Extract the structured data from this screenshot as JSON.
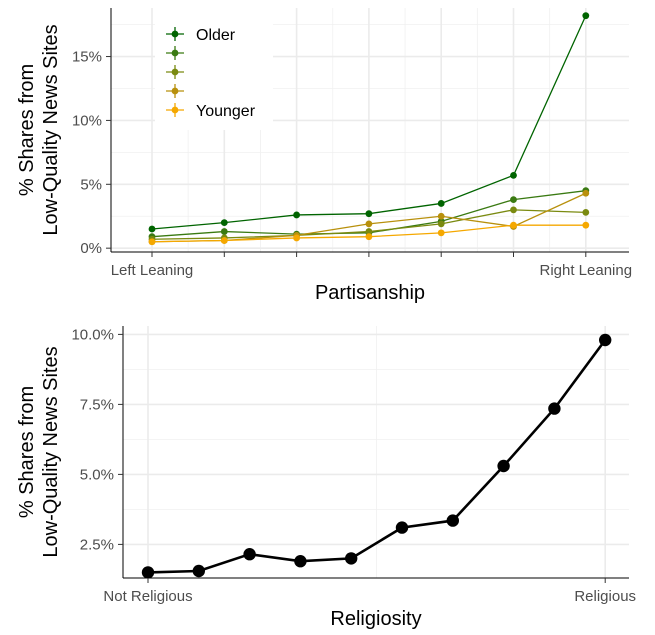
{
  "chart_data": [
    {
      "type": "line",
      "xlabel": "Partisanship",
      "ylabel": [
        "% Shares from",
        "Low-Quality News Sites"
      ],
      "x_tick_labels": [
        "Left Leaning",
        "",
        "",
        "",
        "",
        "",
        "Right Leaning"
      ],
      "x": [
        1,
        2,
        3,
        4,
        5,
        6,
        7
      ],
      "ylim": [
        -0.3,
        18.8
      ],
      "y_ticks": [
        0,
        5,
        10,
        15
      ],
      "y_tick_labels": [
        "0%",
        "5%",
        "10%",
        "15%"
      ],
      "y_unit": "%",
      "grid": true,
      "legend": {
        "placement": "top-left",
        "labels": [
          "Older",
          "",
          "",
          "",
          "Younger"
        ]
      },
      "series": [
        {
          "name": "Older",
          "color": "#006400",
          "values": [
            1.5,
            2.0,
            2.6,
            2.7,
            3.5,
            5.7,
            18.2
          ]
        },
        {
          "name": "",
          "color": "#3a7a12",
          "values": [
            0.9,
            1.3,
            1.1,
            1.2,
            2.1,
            3.8,
            4.5
          ]
        },
        {
          "name": "",
          "color": "#7a8a10",
          "values": [
            0.7,
            0.8,
            1.0,
            1.3,
            1.9,
            3.0,
            2.8
          ]
        },
        {
          "name": "",
          "color": "#b8900c",
          "values": [
            0.5,
            0.6,
            1.0,
            1.9,
            2.5,
            1.7,
            4.3
          ]
        },
        {
          "name": "Younger",
          "color": "#f5a800",
          "values": [
            0.5,
            0.6,
            0.8,
            0.9,
            1.2,
            1.8,
            1.8
          ]
        }
      ]
    },
    {
      "type": "line",
      "xlabel": "Religiosity",
      "ylabel": [
        "% Shares from",
        "Low-Quality News Sites"
      ],
      "x_tick_labels": [
        "Not Religious",
        "Religious"
      ],
      "x": [
        1,
        2,
        3,
        4,
        5,
        6,
        7,
        8,
        9,
        10
      ],
      "ylim": [
        1.3,
        10.3
      ],
      "y_ticks": [
        2.5,
        5.0,
        7.5,
        10.0
      ],
      "y_tick_labels": [
        "2.5%",
        "5.0%",
        "7.5%",
        "10.0%"
      ],
      "y_unit": "%",
      "grid": true,
      "series": [
        {
          "name": "",
          "color": "#000000",
          "values": [
            1.5,
            1.55,
            2.15,
            1.9,
            2.0,
            3.1,
            3.35,
            5.3,
            7.35,
            9.8
          ]
        }
      ]
    }
  ]
}
